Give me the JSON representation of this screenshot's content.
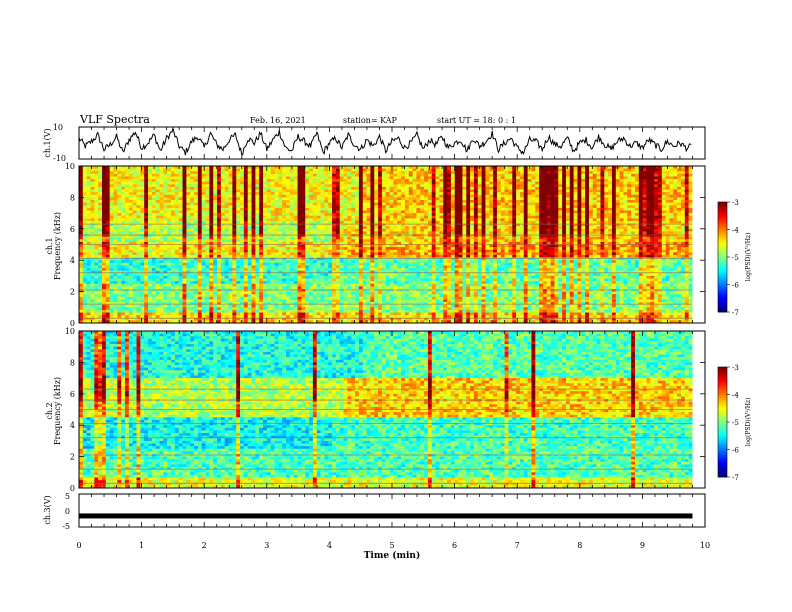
{
  "header": {
    "title": "VLF Spectra",
    "date": "Feb. 16, 2021",
    "station": "station= KAP",
    "start_ut": "start  UT =   18: 0  : 1"
  },
  "chart_data": [
    {
      "type": "line",
      "panel": "ch1-waveform",
      "ylabel": "ch.1(V)",
      "ylim": [
        -10,
        10
      ],
      "yticks": [
        "10",
        "-10"
      ],
      "xlim": [
        0,
        10
      ],
      "note_values": "waveform samples (time in min, amplitude in V), approximate",
      "x": [
        0,
        0.1,
        0.2,
        0.3,
        0.4,
        0.5,
        0.6,
        0.7,
        0.8,
        0.9,
        1.0,
        1.1,
        1.2,
        1.3,
        1.4,
        1.5,
        1.6,
        1.7,
        1.8,
        1.9,
        2.0,
        2.1,
        2.2,
        2.3,
        2.4,
        2.5,
        2.6,
        2.7,
        2.8,
        2.9,
        3.0,
        3.1,
        3.2,
        3.3,
        3.4,
        3.5,
        3.6,
        3.7,
        3.8,
        3.9,
        4.0,
        4.1,
        4.2,
        4.3,
        4.4,
        4.5,
        4.6,
        4.7,
        4.8,
        4.9,
        5.0,
        5.1,
        5.2,
        5.3,
        5.4,
        5.5,
        5.6,
        5.7,
        5.8,
        5.9,
        6.0,
        6.1,
        6.2,
        6.3,
        6.4,
        6.5,
        6.6,
        6.7,
        6.8,
        6.9,
        7.0,
        7.1,
        7.2,
        7.3,
        7.4,
        7.5,
        7.6,
        7.7,
        7.8,
        7.9,
        8.0,
        8.1,
        8.2,
        8.3,
        8.4,
        8.5,
        8.6,
        8.7,
        8.8,
        8.9,
        9.0,
        9.1,
        9.2,
        9.3,
        9.4,
        9.5,
        9.6,
        9.7,
        9.8
      ],
      "values": [
        3,
        -2,
        1,
        5,
        -4,
        -1,
        4,
        -6,
        2,
        7,
        -3,
        0,
        5,
        -5,
        3,
        8,
        -2,
        -6,
        1,
        4,
        -3,
        6,
        -1,
        -4,
        2,
        5,
        -7,
        3,
        0,
        6,
        -4,
        2,
        7,
        -3,
        -5,
        4,
        1,
        -2,
        6,
        -6,
        0,
        3,
        -3,
        5,
        -1,
        -4,
        2,
        -2,
        4,
        -5,
        1,
        3,
        -3,
        0,
        5,
        -4,
        2,
        -1,
        4,
        -3,
        0,
        2,
        -5,
        3,
        -2,
        1,
        6,
        -4,
        0,
        3,
        -3,
        -6,
        2,
        1,
        -4,
        4,
        -1,
        -2,
        3,
        -5,
        0,
        2,
        -3,
        4,
        -1,
        -4,
        1,
        3,
        -2,
        0,
        -3,
        2,
        -1,
        -4,
        1,
        -2,
        0,
        -3,
        -2
      ]
    },
    {
      "type": "heatmap",
      "panel": "ch1-spectrogram",
      "ylabel": "ch.1\nFrequency (kHz)",
      "ylim": [
        0,
        10
      ],
      "yticks": [
        0,
        2,
        4,
        6,
        8,
        10
      ],
      "xlim": [
        0,
        10
      ],
      "colorbar": {
        "label": "log(PSD)(V²/Hz)",
        "range": [
          -7,
          -3
        ],
        "ticks": [
          "-3",
          "-4",
          "-5",
          "-6",
          "-7"
        ]
      }
    },
    {
      "type": "heatmap",
      "panel": "ch2-spectrogram",
      "ylabel": "ch.2\nFrequency (kHz)",
      "ylim": [
        0,
        10
      ],
      "yticks": [
        0,
        2,
        4,
        6,
        8,
        10
      ],
      "xlim": [
        0,
        10
      ],
      "colorbar": {
        "label": "log(PSD)(V²/Hz)",
        "range": [
          -7,
          -3
        ],
        "ticks": [
          "-3",
          "-4",
          "-5",
          "-6",
          "-7"
        ]
      }
    },
    {
      "type": "line",
      "panel": "ch3-waveform",
      "ylabel": "ch.3(V)",
      "ylim": [
        -5,
        5
      ],
      "yticks": [
        "5",
        "0",
        "-5"
      ],
      "xlim": [
        0,
        10
      ],
      "x": [
        0,
        9.8
      ],
      "values": [
        -1.5,
        -1.5
      ]
    }
  ],
  "xaxis": {
    "label": "Time  (min)",
    "ticks": [
      "0",
      "1",
      "2",
      "3",
      "4",
      "5",
      "6",
      "7",
      "8",
      "9",
      "10"
    ]
  }
}
